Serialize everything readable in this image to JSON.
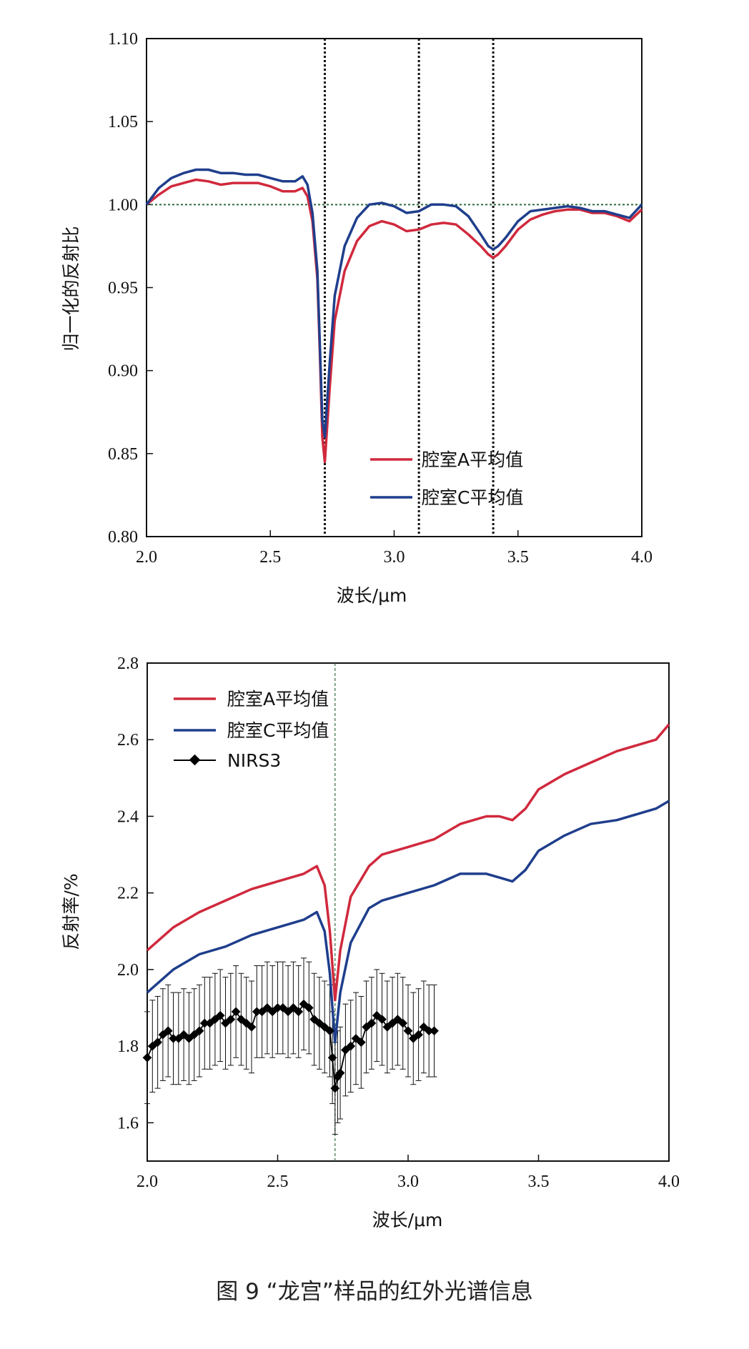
{
  "figure": {
    "caption": "图 9 “龙宫”样品的红外光谱信息"
  },
  "colors": {
    "chamber_a": "#d0293d",
    "chamber_c": "#1f3e8c",
    "nirs3": "#000000",
    "reference": "#2e6b3a",
    "marker": "#111111"
  },
  "chart_data": [
    {
      "type": "line",
      "title": "",
      "xlabel": "波长/μm",
      "ylabel": "归一化的反射比",
      "xlim": [
        2.0,
        4.0
      ],
      "ylim": [
        0.8,
        1.1
      ],
      "xticks": [
        "2.0",
        "2.5",
        "3.0",
        "3.5",
        "4.0"
      ],
      "yticks": [
        "0.80",
        "0.85",
        "0.90",
        "0.95",
        "1.00",
        "1.05",
        "1.10"
      ],
      "grid": false,
      "legend_position": "lower-right",
      "reference_line_y": 1.0,
      "vertical_markers_x": [
        2.72,
        3.1,
        3.4
      ],
      "series": [
        {
          "name": "腔室A平均值",
          "x": [
            2.0,
            2.05,
            2.1,
            2.15,
            2.2,
            2.25,
            2.3,
            2.35,
            2.4,
            2.45,
            2.5,
            2.55,
            2.6,
            2.63,
            2.65,
            2.67,
            2.69,
            2.7,
            2.71,
            2.72,
            2.74,
            2.76,
            2.8,
            2.85,
            2.9,
            2.95,
            3.0,
            3.05,
            3.1,
            3.15,
            3.2,
            3.25,
            3.3,
            3.35,
            3.38,
            3.4,
            3.42,
            3.45,
            3.5,
            3.55,
            3.6,
            3.65,
            3.7,
            3.75,
            3.8,
            3.85,
            3.9,
            3.95,
            4.0
          ],
          "values": [
            1.0,
            1.006,
            1.011,
            1.013,
            1.015,
            1.014,
            1.012,
            1.013,
            1.013,
            1.013,
            1.011,
            1.008,
            1.008,
            1.01,
            1.005,
            0.99,
            0.955,
            0.91,
            0.86,
            0.845,
            0.89,
            0.93,
            0.96,
            0.978,
            0.987,
            0.99,
            0.988,
            0.984,
            0.985,
            0.988,
            0.989,
            0.988,
            0.982,
            0.975,
            0.97,
            0.968,
            0.97,
            0.975,
            0.985,
            0.991,
            0.994,
            0.996,
            0.997,
            0.997,
            0.995,
            0.995,
            0.993,
            0.99,
            0.997
          ]
        },
        {
          "name": "腔室C平均值",
          "x": [
            2.0,
            2.05,
            2.1,
            2.15,
            2.2,
            2.25,
            2.3,
            2.35,
            2.4,
            2.45,
            2.5,
            2.55,
            2.6,
            2.63,
            2.65,
            2.67,
            2.69,
            2.7,
            2.71,
            2.72,
            2.74,
            2.76,
            2.8,
            2.85,
            2.9,
            2.95,
            3.0,
            3.05,
            3.1,
            3.15,
            3.2,
            3.25,
            3.3,
            3.35,
            3.38,
            3.4,
            3.42,
            3.45,
            3.5,
            3.55,
            3.6,
            3.65,
            3.7,
            3.75,
            3.8,
            3.85,
            3.9,
            3.95,
            4.0
          ],
          "values": [
            1.0,
            1.01,
            1.016,
            1.019,
            1.021,
            1.021,
            1.019,
            1.019,
            1.018,
            1.018,
            1.016,
            1.014,
            1.014,
            1.017,
            1.012,
            0.995,
            0.96,
            0.915,
            0.87,
            0.86,
            0.905,
            0.945,
            0.975,
            0.992,
            1.0,
            1.001,
            0.999,
            0.995,
            0.996,
            1.0,
            1.0,
            0.999,
            0.993,
            0.982,
            0.975,
            0.973,
            0.975,
            0.98,
            0.99,
            0.996,
            0.997,
            0.998,
            0.999,
            0.998,
            0.996,
            0.996,
            0.994,
            0.992,
            1.0
          ]
        }
      ]
    },
    {
      "type": "line",
      "title": "",
      "xlabel": "波长/μm",
      "ylabel": "反射率/%",
      "xlim": [
        2.0,
        4.0
      ],
      "ylim": [
        1.5,
        2.8
      ],
      "xticks": [
        "2.0",
        "2.5",
        "3.0",
        "3.5",
        "4.0"
      ],
      "yticks": [
        "1.6",
        "1.8",
        "2.0",
        "2.2",
        "2.4",
        "2.6",
        "2.8"
      ],
      "grid": false,
      "legend_position": "top-left",
      "vertical_markers_x": [
        2.72
      ],
      "series": [
        {
          "name": "腔室A平均值",
          "x": [
            2.0,
            2.1,
            2.2,
            2.3,
            2.4,
            2.5,
            2.6,
            2.65,
            2.68,
            2.7,
            2.72,
            2.74,
            2.78,
            2.85,
            2.9,
            3.0,
            3.1,
            3.2,
            3.3,
            3.35,
            3.4,
            3.45,
            3.5,
            3.6,
            3.7,
            3.8,
            3.9,
            3.95,
            4.0
          ],
          "values": [
            2.05,
            2.11,
            2.15,
            2.18,
            2.21,
            2.23,
            2.25,
            2.27,
            2.22,
            2.1,
            1.92,
            2.05,
            2.19,
            2.27,
            2.3,
            2.32,
            2.34,
            2.38,
            2.4,
            2.4,
            2.39,
            2.42,
            2.47,
            2.51,
            2.54,
            2.57,
            2.59,
            2.6,
            2.64
          ]
        },
        {
          "name": "腔室C平均值",
          "x": [
            2.0,
            2.1,
            2.2,
            2.3,
            2.4,
            2.5,
            2.6,
            2.65,
            2.68,
            2.7,
            2.72,
            2.74,
            2.78,
            2.85,
            2.9,
            3.0,
            3.1,
            3.2,
            3.3,
            3.35,
            3.4,
            3.45,
            3.5,
            3.6,
            3.7,
            3.8,
            3.9,
            3.95,
            4.0
          ],
          "values": [
            1.94,
            2.0,
            2.04,
            2.06,
            2.09,
            2.11,
            2.13,
            2.15,
            2.1,
            1.99,
            1.81,
            1.94,
            2.07,
            2.16,
            2.18,
            2.2,
            2.22,
            2.25,
            2.25,
            2.24,
            2.23,
            2.26,
            2.31,
            2.35,
            2.38,
            2.39,
            2.41,
            2.42,
            2.44
          ]
        },
        {
          "name": "NIRS3",
          "x": [
            2.0,
            2.02,
            2.04,
            2.06,
            2.08,
            2.1,
            2.12,
            2.14,
            2.16,
            2.18,
            2.2,
            2.22,
            2.24,
            2.26,
            2.28,
            2.3,
            2.32,
            2.34,
            2.36,
            2.38,
            2.4,
            2.42,
            2.44,
            2.46,
            2.48,
            2.5,
            2.52,
            2.54,
            2.56,
            2.58,
            2.6,
            2.62,
            2.64,
            2.66,
            2.68,
            2.7,
            2.71,
            2.72,
            2.73,
            2.74,
            2.76,
            2.78,
            2.8,
            2.82,
            2.84,
            2.86,
            2.88,
            2.9,
            2.92,
            2.94,
            2.96,
            2.98,
            3.0,
            3.02,
            3.04,
            3.06,
            3.08,
            3.1
          ],
          "values": [
            1.77,
            1.8,
            1.81,
            1.83,
            1.84,
            1.82,
            1.82,
            1.83,
            1.82,
            1.83,
            1.84,
            1.86,
            1.86,
            1.87,
            1.88,
            1.86,
            1.87,
            1.89,
            1.87,
            1.86,
            1.85,
            1.89,
            1.89,
            1.9,
            1.89,
            1.9,
            1.9,
            1.89,
            1.9,
            1.89,
            1.91,
            1.9,
            1.87,
            1.86,
            1.85,
            1.84,
            1.77,
            1.69,
            1.72,
            1.73,
            1.79,
            1.8,
            1.82,
            1.81,
            1.85,
            1.86,
            1.88,
            1.87,
            1.85,
            1.86,
            1.87,
            1.86,
            1.84,
            1.82,
            1.83,
            1.85,
            1.84,
            1.84
          ],
          "error": 0.12
        }
      ]
    }
  ]
}
